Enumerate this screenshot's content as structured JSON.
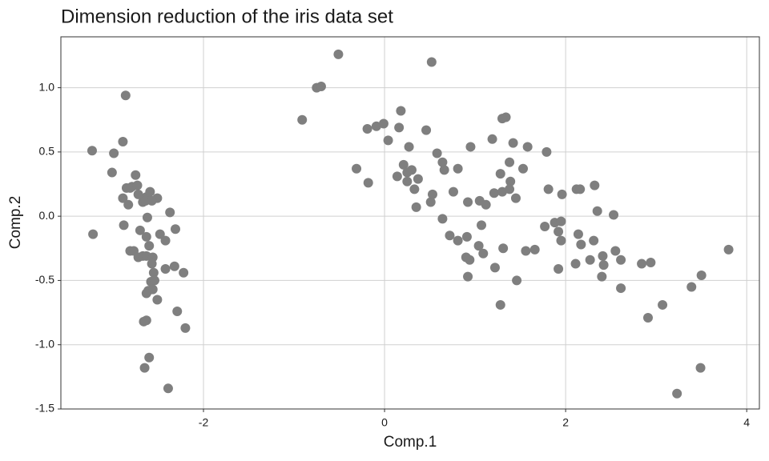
{
  "chart_data": {
    "type": "scatter",
    "title": "Dimension reduction of the iris data set",
    "x_label": "Comp.1",
    "y_label": "Comp.2",
    "color": "#7f7f7f",
    "grid": true,
    "xlim": [
      -3.575,
      4.14
    ],
    "ylim": [
      -1.5,
      1.396
    ],
    "xticks": [
      -2,
      0,
      2,
      4
    ],
    "yticks": [
      -1.5,
      {
        "value": -1,
        "label": "-1.0"
      },
      -0.5,
      {
        "value": 0,
        "label": "0.0"
      },
      0.5,
      {
        "value": 1,
        "label": "1.0"
      }
    ],
    "x": [
      -3.23,
      -3.22,
      -2.86,
      -2.99,
      -2.89,
      -3.01,
      -2.89,
      -2.81,
      -2.75,
      -2.85,
      -2.79,
      -2.73,
      -2.72,
      -2.83,
      -2.67,
      -2.63,
      -2.59,
      -2.51,
      -2.88,
      -2.81,
      -2.77,
      -2.7,
      -2.64,
      -2.62,
      -2.57,
      -2.37,
      -2.31,
      -2.48,
      -2.42,
      -2.63,
      -2.6,
      -2.72,
      -2.67,
      -2.63,
      -2.56,
      -2.57,
      -2.55,
      -2.58,
      -2.54,
      -2.61,
      -2.56,
      -2.51,
      -2.63,
      -2.42,
      -2.32,
      -2.22,
      -2.29,
      -2.2,
      -2.63,
      -2.66,
      -2.6,
      -2.65,
      -2.39,
      -0.51,
      0.52,
      -0.75,
      -0.7,
      -0.91,
      0.18,
      0.16,
      -0.19,
      -0.09,
      -0.01,
      0.04,
      0.46,
      0.27,
      0.58,
      0.64,
      0.95,
      1.19,
      1.34,
      1.3,
      1.42,
      1.58,
      1.79,
      1.53,
      1.38,
      1.28,
      1.39,
      1.21,
      1.3,
      1.38,
      1.45,
      1.05,
      0.92,
      0.76,
      0.81,
      0.66,
      0.3,
      0.21,
      0.25,
      0.14,
      0.37,
      0.25,
      0.33,
      0.35,
      0.51,
      0.64,
      -0.31,
      -0.18,
      0.72,
      0.81,
      0.91,
      0.9,
      1.07,
      1.04,
      1.09,
      0.94,
      0.92,
      1.22,
      1.31,
      1.28,
      1.46,
      1.56,
      1.66,
      1.12,
      0.53,
      1.81,
      1.77,
      1.88,
      1.95,
      1.92,
      1.95,
      1.92,
      1.96,
      2.12,
      2.16,
      2.32,
      2.35,
      2.53,
      2.14,
      2.17,
      2.11,
      2.31,
      2.41,
      2.42,
      2.27,
      2.4,
      2.55,
      2.61,
      2.61,
      2.84,
      2.94,
      2.91,
      3.07,
      3.39,
      3.5,
      3.8,
      3.49,
      3.23
    ],
    "y": [
      0.51,
      -0.14,
      0.94,
      0.49,
      0.58,
      0.34,
      0.14,
      0.22,
      0.32,
      0.22,
      0.23,
      0.24,
      0.17,
      0.09,
      0.11,
      0.15,
      0.19,
      0.14,
      -0.07,
      -0.27,
      -0.27,
      -0.11,
      0.12,
      -0.01,
      0.12,
      0.03,
      -0.1,
      -0.14,
      -0.19,
      -0.16,
      -0.23,
      -0.32,
      -0.31,
      -0.31,
      -0.32,
      -0.37,
      -0.44,
      -0.51,
      -0.5,
      -0.58,
      -0.57,
      -0.65,
      -0.6,
      -0.41,
      -0.39,
      -0.44,
      -0.74,
      -0.87,
      -0.81,
      -0.82,
      -1.1,
      -1.18,
      -1.34,
      1.26,
      1.2,
      1.0,
      1.01,
      0.75,
      0.82,
      0.69,
      0.68,
      0.7,
      0.72,
      0.59,
      0.67,
      0.54,
      0.49,
      0.42,
      0.54,
      0.6,
      0.77,
      0.76,
      0.57,
      0.54,
      0.5,
      0.37,
      0.42,
      0.33,
      0.27,
      0.18,
      0.19,
      0.21,
      0.14,
      0.12,
      0.11,
      0.19,
      0.37,
      0.36,
      0.36,
      0.4,
      0.34,
      0.31,
      0.29,
      0.27,
      0.21,
      0.07,
      0.11,
      -0.02,
      0.37,
      0.26,
      -0.15,
      -0.19,
      -0.16,
      -0.32,
      -0.07,
      -0.23,
      -0.29,
      -0.34,
      -0.47,
      -0.4,
      -0.25,
      -0.69,
      -0.5,
      -0.27,
      -0.26,
      0.09,
      0.17,
      0.21,
      -0.08,
      -0.05,
      -0.04,
      -0.12,
      -0.19,
      -0.41,
      0.17,
      0.21,
      0.21,
      0.24,
      0.04,
      0.01,
      -0.14,
      -0.22,
      -0.37,
      -0.19,
      -0.31,
      -0.38,
      -0.34,
      -0.47,
      -0.27,
      -0.34,
      -0.56,
      -0.37,
      -0.36,
      -0.79,
      -0.69,
      -0.55,
      -0.46,
      -0.26,
      -1.18,
      -1.38
    ]
  }
}
